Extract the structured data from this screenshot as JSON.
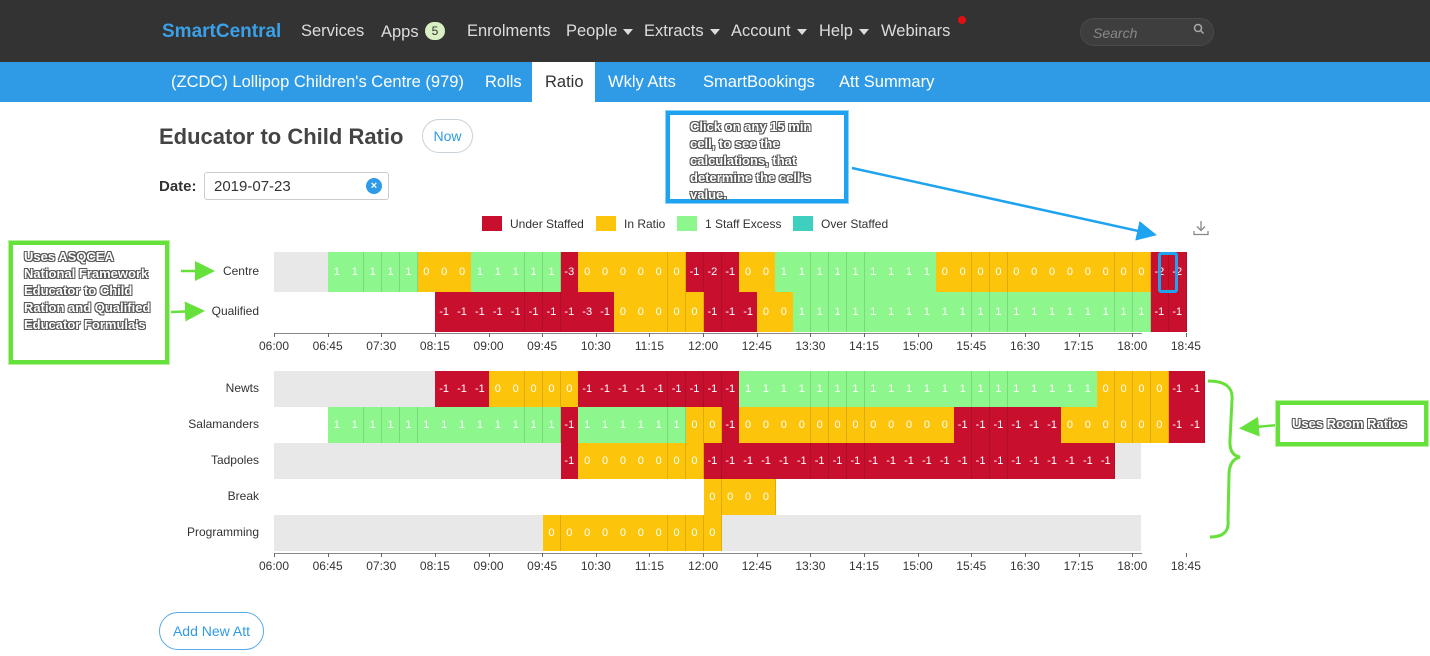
{
  "nav": {
    "brand": "SmartCentral",
    "items": [
      {
        "label": "Services",
        "caret": false
      },
      {
        "label": "Apps",
        "caret": false,
        "badge": "5"
      },
      {
        "label": "Enrolments",
        "caret": false
      },
      {
        "label": "People",
        "caret": true
      },
      {
        "label": "Extracts",
        "caret": true
      },
      {
        "label": "Account",
        "caret": true
      },
      {
        "label": "Help",
        "caret": true
      },
      {
        "label": "Webinars",
        "caret": false
      }
    ],
    "search_placeholder": "Search"
  },
  "subnav": {
    "items": [
      {
        "label": "(ZCDC) Lollipop Children's Centre (979)",
        "active": false
      },
      {
        "label": "Rolls",
        "active": false
      },
      {
        "label": "Ratio",
        "active": true
      },
      {
        "label": "Wkly Atts",
        "active": false
      },
      {
        "label": "SmartBookings",
        "active": false
      },
      {
        "label": "Att Summary",
        "active": false
      }
    ]
  },
  "page": {
    "title": "Educator to Child Ratio",
    "now_button": "Now",
    "date_label": "Date:",
    "date_value": "2019-07-23",
    "add_button": "Add New Att"
  },
  "legend": [
    {
      "label": "Under Staffed",
      "color": "#c8102e"
    },
    {
      "label": "In Ratio",
      "color": "#fcc40a"
    },
    {
      "label": "1 Staff Excess",
      "color": "#8df78d"
    },
    {
      "label": "Over Staffed",
      "color": "#3fcfbf"
    }
  ],
  "annotations": {
    "click_note": "Click on any 15 min cell, to see the calculations, that determine the cell's value.",
    "framework_note": "Uses ASQCEA National Framework Educator to Child Ration and Qualified Educator Formula's",
    "room_note": "Uses Room Ratios"
  },
  "chart_data": {
    "type": "heatmap",
    "x_ticks": [
      "06:00",
      "06:45",
      "07:30",
      "08:15",
      "09:00",
      "09:45",
      "10:30",
      "11:15",
      "12:00",
      "12:45",
      "13:30",
      "14:15",
      "15:00",
      "15:45",
      "16:30",
      "17:15",
      "18:00",
      "18:45"
    ],
    "slot_minutes": 15,
    "color_scale": {
      "negative": "#c8102e",
      "zero": "#fcc40a",
      "one": "#8df78d"
    },
    "charts": [
      {
        "rows": [
          {
            "label": "Centre",
            "start": "06:45",
            "values": [
              1,
              1,
              1,
              1,
              1,
              0,
              0,
              0,
              1,
              1,
              1,
              1,
              1,
              -3,
              0,
              0,
              0,
              0,
              0,
              0,
              -1,
              -2,
              -1,
              0,
              0,
              1,
              1,
              1,
              1,
              1,
              1,
              1,
              1,
              1,
              0,
              0,
              0,
              0,
              0,
              0,
              0,
              0,
              0,
              0,
              0,
              0,
              -2,
              -2
            ]
          },
          {
            "label": "Qualified",
            "start": "08:15",
            "values": [
              -1,
              -1,
              -1,
              -1,
              -1,
              -1,
              -1,
              -1,
              -3,
              -1,
              0,
              0,
              0,
              0,
              0,
              -1,
              -1,
              -1,
              0,
              0,
              1,
              1,
              1,
              1,
              1,
              1,
              1,
              1,
              1,
              1,
              1,
              1,
              1,
              1,
              1,
              1,
              1,
              1,
              1,
              1,
              -1,
              -1
            ]
          }
        ]
      },
      {
        "rows": [
          {
            "label": "Newts",
            "start": "08:15",
            "values": [
              -1,
              -1,
              -1,
              0,
              0,
              0,
              0,
              0,
              -1,
              -1,
              -1,
              -1,
              -1,
              -1,
              -1,
              -1,
              -1,
              1,
              1,
              1,
              1,
              1,
              1,
              1,
              1,
              1,
              1,
              1,
              1,
              1,
              1,
              1,
              1,
              1,
              1,
              1,
              1,
              0,
              0,
              0,
              0,
              -1,
              -1
            ]
          },
          {
            "label": "Salamanders",
            "start": "06:45",
            "values": [
              1,
              1,
              1,
              1,
              1,
              1,
              1,
              1,
              1,
              1,
              1,
              1,
              1,
              -1,
              1,
              1,
              1,
              1,
              1,
              1,
              0,
              0,
              -1,
              0,
              0,
              0,
              0,
              0,
              0,
              0,
              0,
              0,
              0,
              0,
              0,
              -1,
              -1,
              -1,
              -1,
              -1,
              -1,
              0,
              0,
              0,
              0,
              0,
              0,
              -1,
              -1
            ]
          },
          {
            "label": "Tadpoles",
            "start": "10:00",
            "values": [
              -1,
              0,
              0,
              0,
              0,
              0,
              0,
              0,
              -1,
              -1,
              -1,
              -1,
              -1,
              -1,
              -1,
              -1,
              -1,
              -1,
              -1,
              -1,
              -1,
              -1,
              -1,
              -1,
              -1,
              -1,
              -1,
              -1,
              -1,
              -1,
              -1
            ]
          },
          {
            "label": "Break",
            "start": "12:00",
            "values": [
              0,
              0,
              0,
              0
            ]
          },
          {
            "label": "Programming",
            "start": "09:45",
            "values": [
              0,
              0,
              0,
              0,
              0,
              0,
              0,
              0,
              0,
              0
            ]
          }
        ]
      }
    ]
  }
}
